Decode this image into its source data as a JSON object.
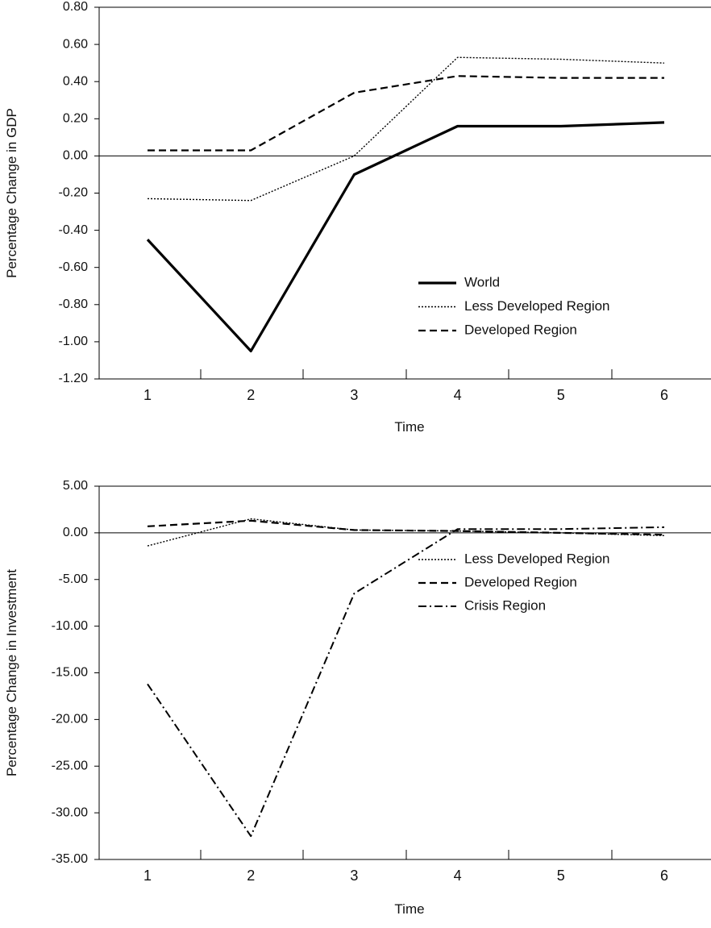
{
  "chart_data": [
    {
      "type": "line",
      "xlabel": "Time",
      "ylabel": "Percentage Change in GDP",
      "x": [
        1,
        2,
        3,
        4,
        5,
        6
      ],
      "ylim": [
        -1.2,
        0.8
      ],
      "yticks": [
        "-1.20",
        "-1.00",
        "-0.80",
        "-0.60",
        "-0.40",
        "-0.20",
        "0.00",
        "0.20",
        "0.40",
        "0.60",
        "0.80"
      ],
      "xticks": [
        "1",
        "2",
        "3",
        "4",
        "5",
        "6"
      ],
      "grid": false,
      "legend_position": "bottom-right",
      "series": [
        {
          "name": "World",
          "style": "solid-thick",
          "values": [
            -0.45,
            -1.05,
            -0.1,
            0.16,
            0.16,
            0.18
          ]
        },
        {
          "name": "Less Developed Region",
          "style": "dotted",
          "values": [
            -0.23,
            -0.24,
            0.0,
            0.53,
            0.52,
            0.5
          ]
        },
        {
          "name": "Developed Region",
          "style": "dashed",
          "values": [
            0.03,
            0.03,
            0.34,
            0.43,
            0.42,
            0.42
          ]
        }
      ]
    },
    {
      "type": "line",
      "xlabel": "Time",
      "ylabel": "Percentage Change in Investment",
      "x": [
        1,
        2,
        3,
        4,
        5,
        6
      ],
      "ylim": [
        -35,
        5
      ],
      "yticks": [
        "-35.00",
        "-30.00",
        "-25.00",
        "-20.00",
        "-15.00",
        "-10.00",
        "-5.00",
        "0.00",
        "5.00"
      ],
      "xticks": [
        "1",
        "2",
        "3",
        "4",
        "5",
        "6"
      ],
      "grid": false,
      "legend_position": "bottom-right",
      "series": [
        {
          "name": "Less Developed Region",
          "style": "dotted",
          "values": [
            -1.4,
            1.5,
            0.3,
            0.2,
            0.0,
            -0.3
          ]
        },
        {
          "name": "Developed Region",
          "style": "dashed",
          "values": [
            0.7,
            1.3,
            0.3,
            0.2,
            0.0,
            -0.2
          ]
        },
        {
          "name": "Crisis Region",
          "style": "dashdot",
          "values": [
            -16.2,
            -32.5,
            -6.5,
            0.4,
            0.4,
            0.6
          ]
        }
      ]
    }
  ]
}
